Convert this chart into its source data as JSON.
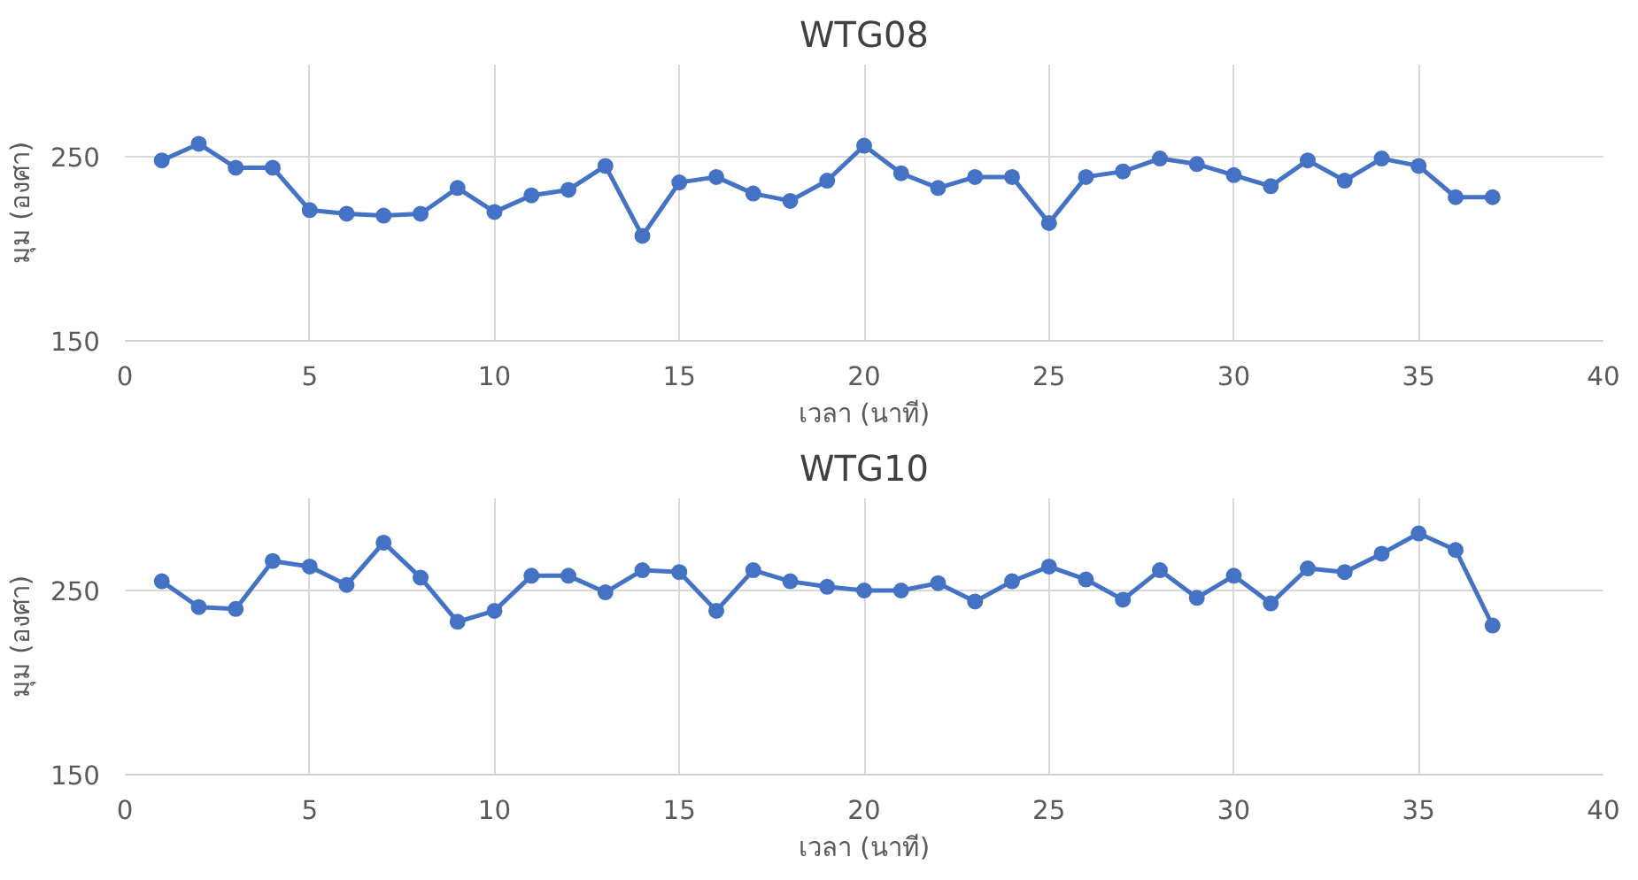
{
  "chart_data": [
    {
      "type": "line",
      "title": "WTG08",
      "xlabel": "เวลา (นาที)",
      "ylabel": "มุม (องศา)",
      "x": [
        1,
        2,
        3,
        4,
        5,
        6,
        7,
        8,
        9,
        10,
        11,
        12,
        13,
        14,
        15,
        16,
        17,
        18,
        19,
        20,
        21,
        22,
        23,
        24,
        25,
        26,
        27,
        28,
        29,
        30,
        31,
        32,
        33,
        34,
        35,
        36,
        37
      ],
      "series": [
        {
          "color": "#4472c4",
          "values": [
            248,
            257,
            244,
            244,
            221,
            219,
            218,
            219,
            233,
            220,
            229,
            232,
            245,
            207,
            236,
            239,
            230,
            226,
            237,
            256,
            241,
            233,
            239,
            239,
            214,
            239,
            242,
            249,
            246,
            240,
            234,
            248,
            237,
            249,
            245,
            228,
            228
          ]
        }
      ],
      "xlim": [
        0,
        40
      ],
      "xticks": [
        0,
        5,
        10,
        15,
        20,
        25,
        30,
        35,
        40
      ],
      "ylim": [
        150,
        300
      ],
      "yticks": [
        150,
        250
      ],
      "grid": true,
      "marker": "circle",
      "line_style": "solid"
    },
    {
      "type": "line",
      "title": "WTG10",
      "xlabel": "เวลา (นาที)",
      "ylabel": "มุม (องศา)",
      "x": [
        1,
        2,
        3,
        4,
        5,
        6,
        7,
        8,
        9,
        10,
        11,
        12,
        13,
        14,
        15,
        16,
        17,
        18,
        19,
        20,
        21,
        22,
        23,
        24,
        25,
        26,
        27,
        28,
        29,
        30,
        31,
        32,
        33,
        34,
        35,
        36,
        37
      ],
      "series": [
        {
          "color": "#4472c4",
          "values": [
            255,
            241,
            240,
            266,
            263,
            253,
            276,
            257,
            233,
            239,
            258,
            258,
            249,
            261,
            260,
            239,
            261,
            255,
            252,
            250,
            250,
            254,
            244,
            255,
            263,
            256,
            245,
            261,
            246,
            258,
            243,
            262,
            260,
            270,
            281,
            272,
            231
          ]
        }
      ],
      "xlim": [
        0,
        40
      ],
      "xticks": [
        0,
        5,
        10,
        15,
        20,
        25,
        30,
        35,
        40
      ],
      "ylim": [
        150,
        300
      ],
      "yticks": [
        150,
        250
      ],
      "grid": true,
      "marker": "circle",
      "line_style": "solid"
    }
  ]
}
